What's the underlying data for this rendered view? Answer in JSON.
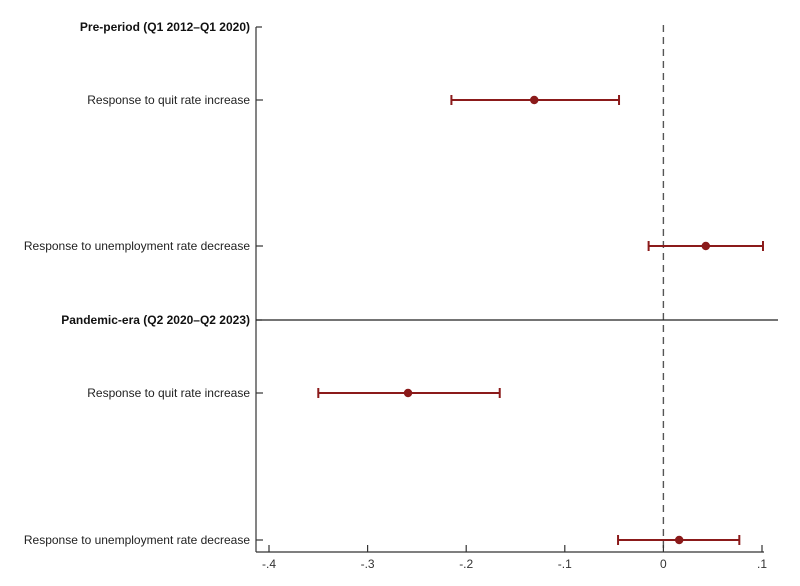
{
  "chart_data": {
    "type": "scatter",
    "subtype": "coefficient-plot-with-confidence-intervals",
    "title": "",
    "xlabel": "",
    "ylabel": "",
    "xlim": [
      -0.4,
      0.1
    ],
    "x_ticks": [
      -0.4,
      -0.3,
      -0.2,
      -0.1,
      0,
      0.1
    ],
    "x_tick_labels": [
      "-.4",
      "-.3",
      "-.2",
      "-.1",
      "0",
      ".1"
    ],
    "reference_line": {
      "x": 0,
      "style": "dashed"
    },
    "grid": false,
    "legend": null,
    "groups": [
      {
        "name": "Pre-period (Q1 2012–Q1 2020)",
        "rows": [
          {
            "label": "Response to quit rate increase",
            "estimate": -0.131,
            "ci_low": -0.215,
            "ci_high": -0.045
          },
          {
            "label": "Response to unemployment rate decrease",
            "estimate": 0.043,
            "ci_low": -0.015,
            "ci_high": 0.101
          }
        ]
      },
      {
        "name": "Pandemic-era (Q2 2020–Q2 2023)",
        "rows": [
          {
            "label": "Response to quit rate increase",
            "estimate": -0.259,
            "ci_low": -0.35,
            "ci_high": -0.166
          },
          {
            "label": "Response to unemployment rate decrease",
            "estimate": 0.016,
            "ci_low": -0.046,
            "ci_high": 0.077
          }
        ]
      }
    ],
    "colors": {
      "marker": "#8b1a1a",
      "axis": "#333333",
      "refline": "#555555"
    }
  }
}
